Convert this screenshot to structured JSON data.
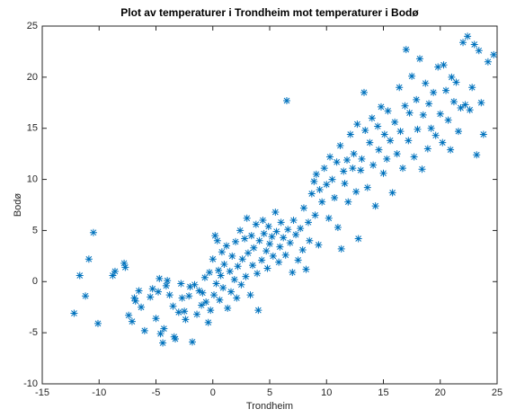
{
  "chart_data": {
    "type": "scatter",
    "title": "Plot av temperaturer i Trondheim mot temperaturer i Bodø",
    "xlabel": "Trondheim",
    "ylabel": "Bodø",
    "color": "#0072bd",
    "marker": "*",
    "xlim": [
      -15,
      25
    ],
    "ylim": [
      -10,
      25
    ],
    "xticks": [
      -15,
      -10,
      -5,
      0,
      5,
      10,
      15,
      20,
      25
    ],
    "yticks": [
      -10,
      -5,
      0,
      5,
      10,
      15,
      20,
      25
    ],
    "x": [
      -12.2,
      -11.7,
      -11.2,
      -10.9,
      -10.5,
      -10.1,
      -8.8,
      -8.6,
      -7.8,
      -7.7,
      -7.4,
      -7.1,
      -6.9,
      -6.8,
      -6.5,
      -6.3,
      -6.0,
      -5.5,
      -5.3,
      -5.0,
      -4.8,
      -4.7,
      -4.6,
      -4.4,
      -4.3,
      -4.1,
      -4.0,
      -3.8,
      -3.5,
      -3.4,
      -3.3,
      -3.0,
      -2.8,
      -2.7,
      -2.5,
      -2.4,
      -2.1,
      -2.0,
      -1.8,
      -1.6,
      -1.4,
      -1.2,
      -1.0,
      -0.9,
      -0.7,
      -0.6,
      -0.4,
      -0.3,
      -0.2,
      0.0,
      0.1,
      0.2,
      0.3,
      0.4,
      0.5,
      0.6,
      0.7,
      0.8,
      0.9,
      1.0,
      1.2,
      1.3,
      1.5,
      1.6,
      1.7,
      1.9,
      2.0,
      2.1,
      2.2,
      2.4,
      2.5,
      2.6,
      2.8,
      2.9,
      3.0,
      3.1,
      3.3,
      3.4,
      3.5,
      3.6,
      3.8,
      3.9,
      4.0,
      4.1,
      4.3,
      4.4,
      4.5,
      4.7,
      4.8,
      4.9,
      5.0,
      5.2,
      5.3,
      5.5,
      5.6,
      5.8,
      5.9,
      6.0,
      6.2,
      6.4,
      6.5,
      6.6,
      6.8,
      7.0,
      7.1,
      7.3,
      7.5,
      7.7,
      7.9,
      8.0,
      8.2,
      8.4,
      8.5,
      8.7,
      8.9,
      9.0,
      9.1,
      9.3,
      9.4,
      9.6,
      9.8,
      10.0,
      10.2,
      10.3,
      10.5,
      10.7,
      10.9,
      11.0,
      11.2,
      11.3,
      11.5,
      11.6,
      11.8,
      11.9,
      12.1,
      12.3,
      12.4,
      12.6,
      12.7,
      12.8,
      13.0,
      13.1,
      13.3,
      13.4,
      13.6,
      13.8,
      14.0,
      14.1,
      14.3,
      14.5,
      14.6,
      14.8,
      15.0,
      15.1,
      15.3,
      15.4,
      15.6,
      15.8,
      16.0,
      16.2,
      16.4,
      16.5,
      16.7,
      16.9,
      17.0,
      17.2,
      17.3,
      17.5,
      17.7,
      17.9,
      18.0,
      18.2,
      18.4,
      18.5,
      18.7,
      18.9,
      19.0,
      19.2,
      19.4,
      19.6,
      19.8,
      20.0,
      20.2,
      20.3,
      20.5,
      20.7,
      20.9,
      21.0,
      21.2,
      21.4,
      21.6,
      21.8,
      22.0,
      22.2,
      22.4,
      22.6,
      22.8,
      23.0,
      23.2,
      23.4,
      23.6,
      23.8,
      24.2,
      24.7
    ],
    "values": [
      -3.1,
      0.6,
      -1.4,
      2.2,
      4.8,
      -4.1,
      0.6,
      1.0,
      1.8,
      1.4,
      -3.3,
      -3.9,
      -1.6,
      -1.9,
      -0.9,
      -2.5,
      -4.8,
      -1.5,
      -0.7,
      -3.6,
      -1.0,
      0.3,
      -5.1,
      -6.0,
      -4.6,
      -0.4,
      0.1,
      -1.3,
      -2.4,
      -5.4,
      -5.6,
      -3.0,
      -0.2,
      -1.6,
      -2.9,
      -3.7,
      -1.4,
      -0.5,
      -5.9,
      -0.3,
      -3.2,
      -0.9,
      -2.3,
      -1.1,
      0.4,
      -2.0,
      -4.0,
      0.9,
      -2.8,
      2.2,
      -1.3,
      4.5,
      -0.2,
      4.0,
      1.1,
      -1.8,
      0.6,
      2.9,
      -0.6,
      1.7,
      3.5,
      -2.6,
      1.0,
      -1.0,
      2.5,
      0.2,
      3.9,
      -1.6,
      1.5,
      5.0,
      -0.3,
      2.2,
      4.2,
      0.5,
      6.2,
      2.8,
      -1.3,
      4.5,
      1.6,
      3.3,
      5.6,
      0.8,
      -2.8,
      4.0,
      2.1,
      6.0,
      4.7,
      3.0,
      1.3,
      5.4,
      3.7,
      4.4,
      2.5,
      6.8,
      4.9,
      1.9,
      3.4,
      5.8,
      4.3,
      2.6,
      17.7,
      5.1,
      3.8,
      0.9,
      6.0,
      4.6,
      2.1,
      5.2,
      3.1,
      7.2,
      1.2,
      5.8,
      4.0,
      8.6,
      9.8,
      6.5,
      10.5,
      3.6,
      9.0,
      7.8,
      11.1,
      9.5,
      6.2,
      12.2,
      10.0,
      8.2,
      11.7,
      5.3,
      13.3,
      3.2,
      10.8,
      9.6,
      11.9,
      7.8,
      14.4,
      11.1,
      12.5,
      8.8,
      15.4,
      4.2,
      10.9,
      12.0,
      18.5,
      14.8,
      9.2,
      13.6,
      16.0,
      11.4,
      7.4,
      15.2,
      12.9,
      17.1,
      10.6,
      14.4,
      12.0,
      16.7,
      13.8,
      8.7,
      15.6,
      12.5,
      19.0,
      14.7,
      11.1,
      17.2,
      22.7,
      13.8,
      16.5,
      20.1,
      12.2,
      17.8,
      14.9,
      21.8,
      11.0,
      16.3,
      19.4,
      13.0,
      17.4,
      15.0,
      18.5,
      14.3,
      21.0,
      16.4,
      13.6,
      21.2,
      18.7,
      15.8,
      12.9,
      20.0,
      17.6,
      19.5,
      14.7,
      17.0,
      23.4,
      17.3,
      24.0,
      16.8,
      19.0,
      23.2,
      12.4,
      22.6,
      17.5,
      14.4,
      21.5,
      22.2
    ]
  }
}
